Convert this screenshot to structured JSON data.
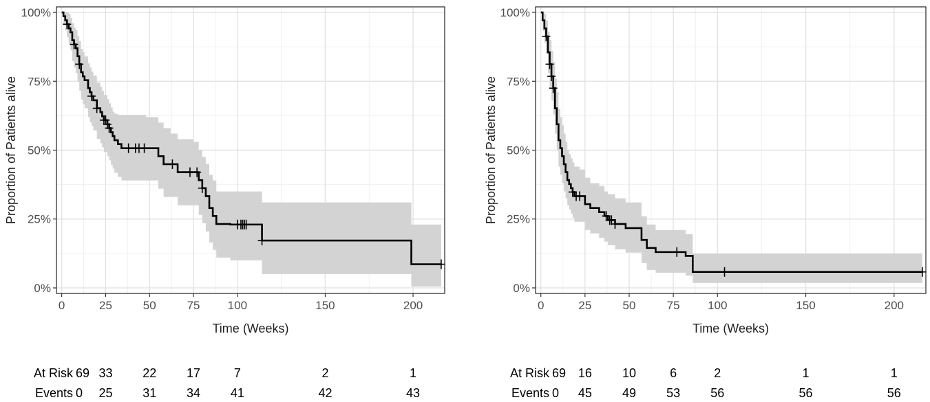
{
  "chart_data": [
    {
      "type": "line",
      "subtype": "kaplan-meier",
      "xlabel": "Time (Weeks)",
      "ylabel": "Proportion of Patients alive",
      "xlim": [
        -3,
        218
      ],
      "ylim": [
        -0.02,
        1.02
      ],
      "xticks": [
        0,
        25,
        50,
        75,
        100,
        150,
        200
      ],
      "yticks": [
        0,
        0.25,
        0.5,
        0.75,
        1.0
      ],
      "ytick_labels": [
        "0%",
        "25%",
        "50%",
        "75%",
        "100%"
      ],
      "grid": true,
      "series": [
        {
          "x": [
            0,
            1,
            2,
            3,
            4,
            5,
            6,
            7,
            8,
            9,
            10,
            11,
            12,
            13,
            15,
            16,
            17,
            18,
            20,
            22,
            23,
            24,
            26,
            27,
            28,
            29,
            30,
            32,
            34,
            42,
            48,
            55,
            58,
            62,
            66,
            75,
            78,
            80,
            82,
            84,
            86,
            88,
            92,
            96,
            114,
            199,
            216
          ],
          "y": [
            1.0,
            0.986,
            0.971,
            0.957,
            0.942,
            0.928,
            0.899,
            0.884,
            0.87,
            0.841,
            0.812,
            0.783,
            0.768,
            0.754,
            0.725,
            0.71,
            0.696,
            0.681,
            0.652,
            0.638,
            0.623,
            0.609,
            0.594,
            0.58,
            0.565,
            0.551,
            0.536,
            0.522,
            0.507,
            0.507,
            0.507,
            0.478,
            0.449,
            0.449,
            0.42,
            0.42,
            0.391,
            0.362,
            0.333,
            0.29,
            0.261,
            0.232,
            0.232,
            0.23,
            0.172,
            0.086,
            0.086
          ],
          "lower": [
            1.0,
            0.958,
            0.935,
            0.91,
            0.886,
            0.862,
            0.823,
            0.8,
            0.78,
            0.748,
            0.715,
            0.683,
            0.667,
            0.652,
            0.62,
            0.602,
            0.588,
            0.572,
            0.541,
            0.525,
            0.51,
            0.493,
            0.478,
            0.463,
            0.447,
            0.433,
            0.418,
            0.403,
            0.39,
            0.39,
            0.39,
            0.36,
            0.33,
            0.33,
            0.3,
            0.3,
            0.265,
            0.235,
            0.205,
            0.165,
            0.138,
            0.11,
            0.11,
            0.1,
            0.05,
            0.005,
            0.005
          ],
          "upper": [
            1.0,
            1.0,
            1.0,
            1.0,
            0.995,
            0.98,
            0.96,
            0.945,
            0.935,
            0.915,
            0.895,
            0.868,
            0.855,
            0.84,
            0.815,
            0.8,
            0.785,
            0.77,
            0.745,
            0.73,
            0.715,
            0.7,
            0.685,
            0.67,
            0.655,
            0.64,
            0.632,
            0.628,
            0.628,
            0.628,
            0.62,
            0.6,
            0.58,
            0.56,
            0.54,
            0.53,
            0.5,
            0.475,
            0.45,
            0.41,
            0.39,
            0.35,
            0.35,
            0.35,
            0.31,
            0.23,
            0.23
          ],
          "censor_x": [
            3,
            7,
            10,
            17,
            20,
            24,
            25,
            26,
            27,
            38,
            42,
            44,
            47,
            63,
            73,
            77,
            80,
            100,
            102,
            103,
            104,
            105,
            114,
            216
          ]
        }
      ],
      "at_risk_label": "At Risk",
      "events_label": "Events",
      "risk_times": [
        0,
        25,
        50,
        75,
        100,
        150,
        200
      ],
      "at_risk": [
        69,
        33,
        22,
        17,
        7,
        2,
        1
      ],
      "events": [
        0,
        25,
        31,
        34,
        41,
        42,
        43
      ]
    },
    {
      "type": "line",
      "subtype": "kaplan-meier",
      "xlabel": "Time (Weeks)",
      "ylabel": "Proportion of Patients alive",
      "xlim": [
        -3,
        218
      ],
      "ylim": [
        -0.02,
        1.02
      ],
      "xticks": [
        0,
        25,
        50,
        75,
        100,
        150,
        200
      ],
      "yticks": [
        0,
        0.25,
        0.5,
        0.75,
        1.0
      ],
      "ytick_labels": [
        "0%",
        "25%",
        "50%",
        "75%",
        "100%"
      ],
      "grid": true,
      "series": [
        {
          "x": [
            0,
            1,
            2,
            3,
            4,
            5,
            6,
            7,
            8,
            9,
            10,
            11,
            12,
            13,
            14,
            15,
            16,
            17,
            18,
            19,
            20,
            22,
            25,
            28,
            30,
            33,
            36,
            38,
            42,
            48,
            57,
            60,
            65,
            75,
            82,
            86,
            216
          ],
          "y": [
            1.0,
            0.971,
            0.942,
            0.913,
            0.855,
            0.812,
            0.768,
            0.725,
            0.652,
            0.594,
            0.536,
            0.507,
            0.478,
            0.449,
            0.42,
            0.391,
            0.377,
            0.362,
            0.348,
            0.333,
            0.333,
            0.333,
            0.304,
            0.29,
            0.29,
            0.275,
            0.261,
            0.246,
            0.232,
            0.217,
            0.174,
            0.145,
            0.13,
            0.13,
            0.116,
            0.058,
            0.058
          ],
          "lower": [
            1.0,
            0.932,
            0.89,
            0.85,
            0.78,
            0.73,
            0.68,
            0.63,
            0.56,
            0.5,
            0.44,
            0.41,
            0.38,
            0.35,
            0.325,
            0.3,
            0.285,
            0.27,
            0.255,
            0.24,
            0.24,
            0.24,
            0.21,
            0.198,
            0.198,
            0.182,
            0.168,
            0.155,
            0.14,
            0.128,
            0.09,
            0.065,
            0.055,
            0.055,
            0.045,
            0.018,
            0.018
          ],
          "upper": [
            1.0,
            1.0,
            0.995,
            0.97,
            0.93,
            0.9,
            0.86,
            0.82,
            0.76,
            0.71,
            0.65,
            0.62,
            0.59,
            0.56,
            0.53,
            0.5,
            0.485,
            0.47,
            0.455,
            0.44,
            0.44,
            0.43,
            0.4,
            0.38,
            0.38,
            0.37,
            0.35,
            0.34,
            0.325,
            0.31,
            0.26,
            0.23,
            0.21,
            0.21,
            0.195,
            0.125,
            0.125
          ],
          "censor_x": [
            3,
            5,
            6,
            7,
            18,
            20,
            22,
            37,
            39,
            40,
            42,
            77,
            104,
            216
          ]
        }
      ],
      "at_risk_label": "At Risk",
      "events_label": "Events",
      "risk_times": [
        0,
        25,
        50,
        75,
        100,
        150,
        200
      ],
      "at_risk": [
        69,
        16,
        10,
        6,
        2,
        1,
        1
      ],
      "events": [
        0,
        45,
        49,
        53,
        56,
        56,
        56
      ]
    }
  ]
}
